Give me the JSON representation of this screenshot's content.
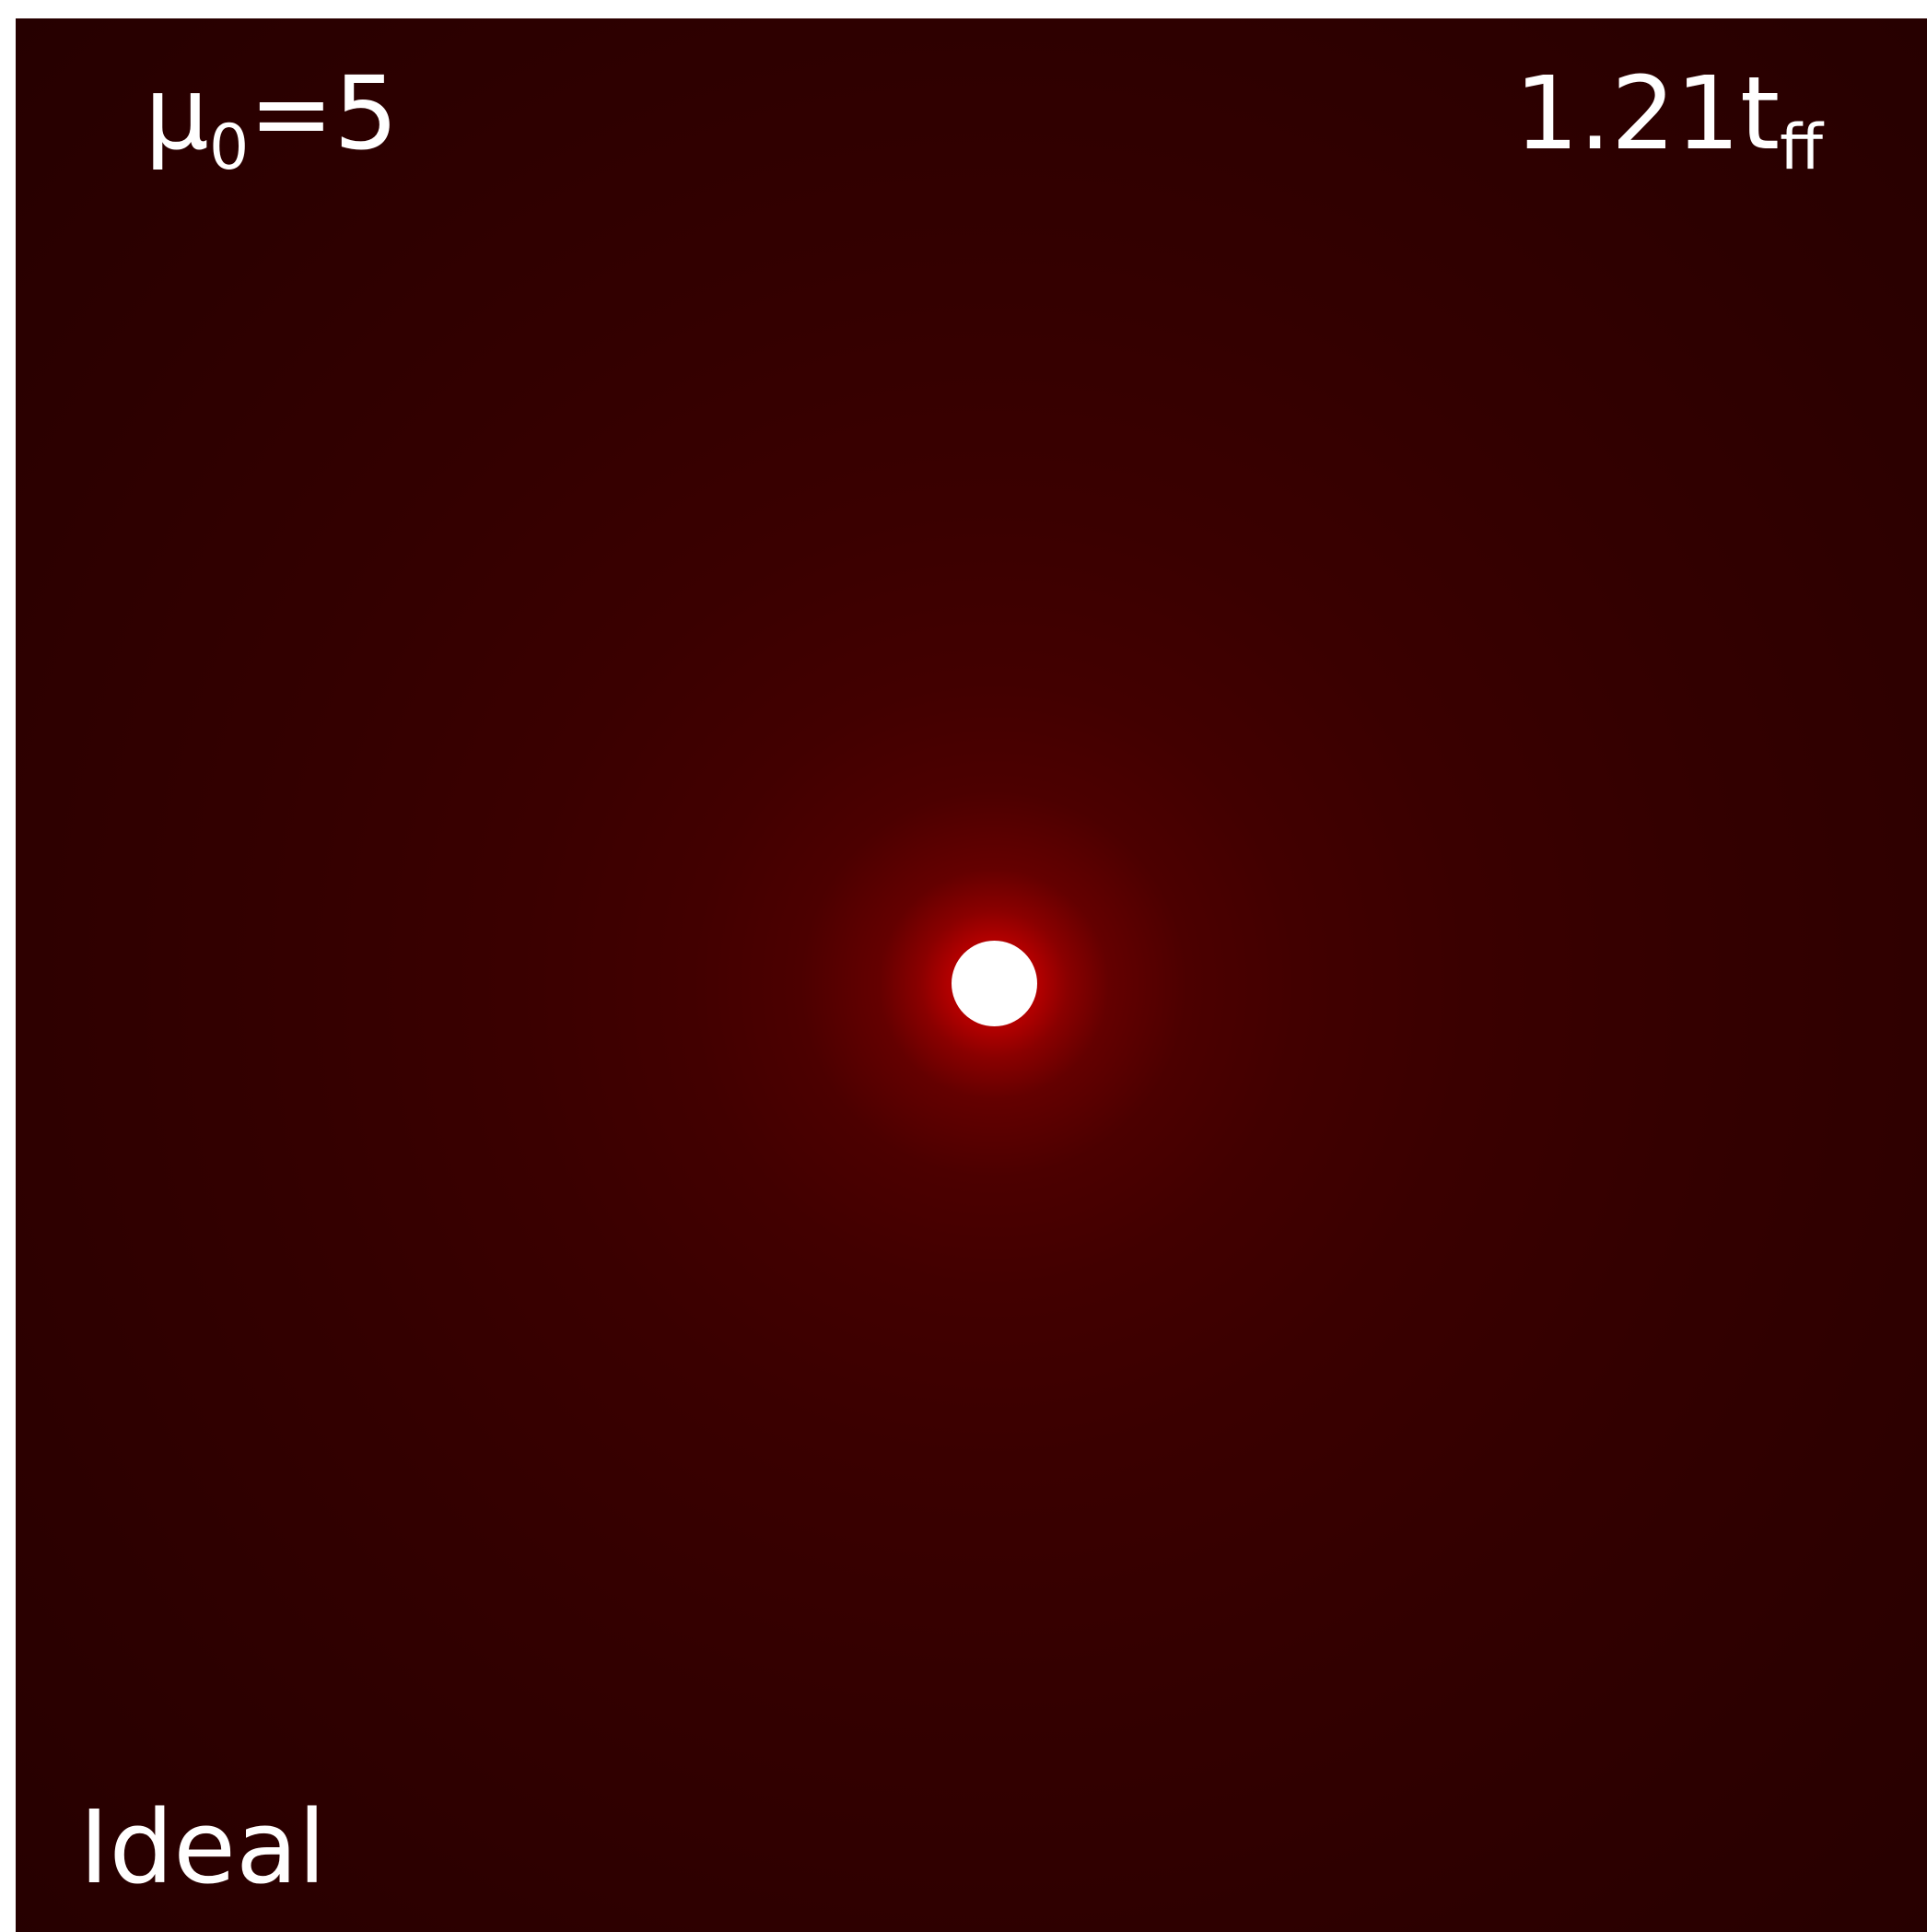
{
  "panel": {
    "parameter": {
      "symbol": "μ",
      "subscript": "0",
      "relation": "=5"
    },
    "time": {
      "value": "1.21t",
      "subscript": "ff"
    },
    "model": "Ideal"
  },
  "colors": {
    "background": "#2c0000",
    "core": "#c40000",
    "sink": "#ffffff",
    "text": "#ffffff"
  }
}
